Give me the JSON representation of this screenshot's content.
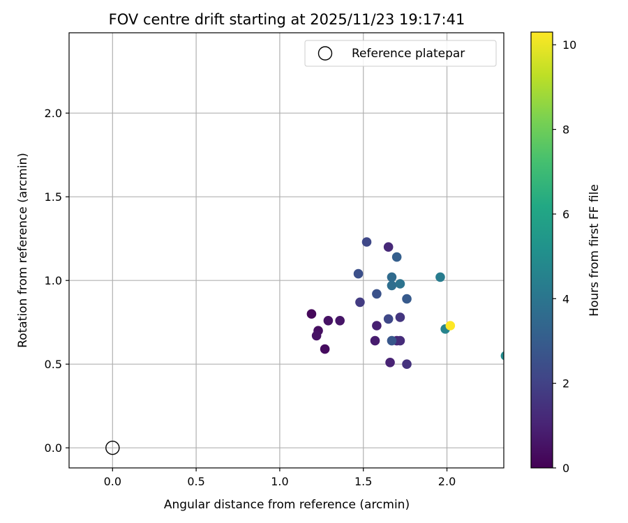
{
  "chart_data": {
    "type": "scatter",
    "title": "FOV centre drift starting at 2025/11/23 19:17:41",
    "xlabel": "Angular distance from reference (arcmin)",
    "ylabel": "Rotation from reference (arcmin)",
    "xlim": [
      -0.26,
      2.34
    ],
    "ylim": [
      -0.12,
      2.48
    ],
    "xticks": [
      0.0,
      0.5,
      1.0,
      1.5,
      2.0
    ],
    "xtick_labels": [
      "0.0",
      "0.5",
      "1.0",
      "1.5",
      "2.0"
    ],
    "yticks": [
      0.0,
      0.5,
      1.0,
      1.5,
      2.0
    ],
    "ytick_labels": [
      "0.0",
      "0.5",
      "1.0",
      "1.5",
      "2.0"
    ],
    "grid": true,
    "legend": {
      "location": "top-right",
      "entries": [
        "Reference platepar"
      ]
    },
    "reference_point": {
      "x": 0.0,
      "y": 0.0,
      "label": "Reference platepar"
    },
    "colorbar": {
      "label": "Hours from first FF file",
      "range": [
        0,
        10.3
      ],
      "ticks": [
        0,
        2,
        4,
        6,
        8,
        10
      ],
      "tick_labels": [
        "0",
        "2",
        "4",
        "6",
        "8",
        "10"
      ],
      "colormap": "viridis"
    },
    "points": [
      {
        "x": 1.19,
        "y": 0.8,
        "hours": 0.2
      },
      {
        "x": 1.23,
        "y": 0.7,
        "hours": 0.4
      },
      {
        "x": 1.22,
        "y": 0.67,
        "hours": 0.5
      },
      {
        "x": 1.27,
        "y": 0.59,
        "hours": 0.3
      },
      {
        "x": 1.29,
        "y": 0.76,
        "hours": 0.5
      },
      {
        "x": 1.36,
        "y": 0.76,
        "hours": 0.6
      },
      {
        "x": 1.57,
        "y": 0.64,
        "hours": 0.8
      },
      {
        "x": 1.58,
        "y": 0.73,
        "hours": 0.9
      },
      {
        "x": 1.66,
        "y": 0.51,
        "hours": 1.0
      },
      {
        "x": 1.7,
        "y": 0.64,
        "hours": 1.1
      },
      {
        "x": 1.72,
        "y": 0.64,
        "hours": 1.3
      },
      {
        "x": 1.76,
        "y": 0.5,
        "hours": 1.5
      },
      {
        "x": 1.72,
        "y": 0.78,
        "hours": 1.6
      },
      {
        "x": 1.65,
        "y": 1.2,
        "hours": 1.2
      },
      {
        "x": 1.48,
        "y": 0.87,
        "hours": 1.8
      },
      {
        "x": 1.65,
        "y": 0.77,
        "hours": 2.2
      },
      {
        "x": 1.52,
        "y": 1.23,
        "hours": 2.2
      },
      {
        "x": 1.47,
        "y": 1.04,
        "hours": 2.5
      },
      {
        "x": 1.58,
        "y": 0.92,
        "hours": 2.6
      },
      {
        "x": 1.67,
        "y": 0.64,
        "hours": 2.8
      },
      {
        "x": 1.76,
        "y": 0.89,
        "hours": 2.9
      },
      {
        "x": 1.7,
        "y": 1.14,
        "hours": 3.1
      },
      {
        "x": 1.67,
        "y": 1.02,
        "hours": 3.6
      },
      {
        "x": 1.67,
        "y": 0.97,
        "hours": 3.7
      },
      {
        "x": 1.72,
        "y": 0.98,
        "hours": 3.9
      },
      {
        "x": 1.96,
        "y": 1.02,
        "hours": 4.3
      },
      {
        "x": 1.99,
        "y": 0.71,
        "hours": 4.6
      },
      {
        "x": 2.35,
        "y": 0.55,
        "hours": 4.9
      },
      {
        "x": 2.02,
        "y": 0.73,
        "hours": 10.3
      }
    ]
  }
}
